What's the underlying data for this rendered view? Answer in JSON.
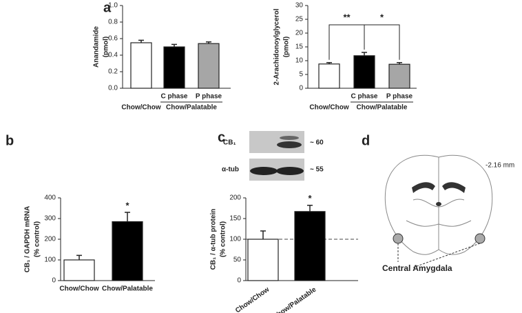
{
  "panel_labels": [
    "a",
    "b",
    "c",
    "d"
  ],
  "chart_data": [
    {
      "type": "bar",
      "ylabel": [
        "Anandamide",
        "(pmol)"
      ],
      "categories": [
        "Chow/Chow",
        "C phase",
        "P phase"
      ],
      "group_label": "Chow/Palatable",
      "values": [
        0.55,
        0.5,
        0.54
      ],
      "errors": [
        0.03,
        0.03,
        0.02
      ],
      "colors": [
        "#ffffff",
        "#000000",
        "#a6a6a6"
      ],
      "ylim": [
        0,
        1
      ],
      "yticks": [
        {
          "value": 0,
          "label": "0.0"
        },
        0.2,
        0.4,
        0.6,
        0.8,
        {
          "value": 1,
          "label": "1.0"
        }
      ]
    },
    {
      "type": "bar",
      "ylabel": [
        "2-Arachidonoylglycerol",
        "(pmol)"
      ],
      "categories": [
        "Chow/Chow",
        "C phase",
        "P phase"
      ],
      "group_label": "Chow/Palatable",
      "values": [
        8.8,
        11.8,
        8.7
      ],
      "errors": [
        0.5,
        1.2,
        0.6
      ],
      "colors": [
        "#ffffff",
        "#000000",
        "#a6a6a6"
      ],
      "ylim": [
        0,
        30
      ],
      "yticks": [
        0,
        5,
        10,
        15,
        20,
        25,
        30
      ],
      "annotations": [
        "**",
        "*"
      ]
    },
    {
      "type": "bar",
      "ylabel": [
        "CB₁ / GAPDH mRNA",
        "(% control)"
      ],
      "categories": [
        "Chow/Chow",
        "Chow/Palatable"
      ],
      "values": [
        100,
        285
      ],
      "errors": [
        22,
        45
      ],
      "colors": [
        "#ffffff",
        "#000000"
      ],
      "ylim": [
        0,
        400
      ],
      "yticks": [
        0,
        100,
        200,
        300,
        400
      ],
      "annotations": [
        "*"
      ]
    },
    {
      "type": "bar",
      "ylabel": [
        "CB₁ / α-tub protein",
        "(% control)"
      ],
      "categories": [
        "Chow/Chow",
        "Chow/Palatable"
      ],
      "rotate_xlabels": true,
      "values": [
        100,
        167
      ],
      "errors": [
        20,
        15
      ],
      "colors": [
        "#ffffff",
        "#000000"
      ],
      "ylim": [
        0,
        200
      ],
      "yticks": [
        0,
        50,
        100,
        150,
        200
      ],
      "reference_line": 100,
      "annotations": [
        "*"
      ]
    }
  ],
  "blot": [
    {
      "label": "CB₁",
      "size": "~ 60"
    },
    {
      "label": "α-tub",
      "size": "~ 55"
    }
  ],
  "brain": {
    "level": "-2.16 mm",
    "region": "Central Amygdala"
  }
}
